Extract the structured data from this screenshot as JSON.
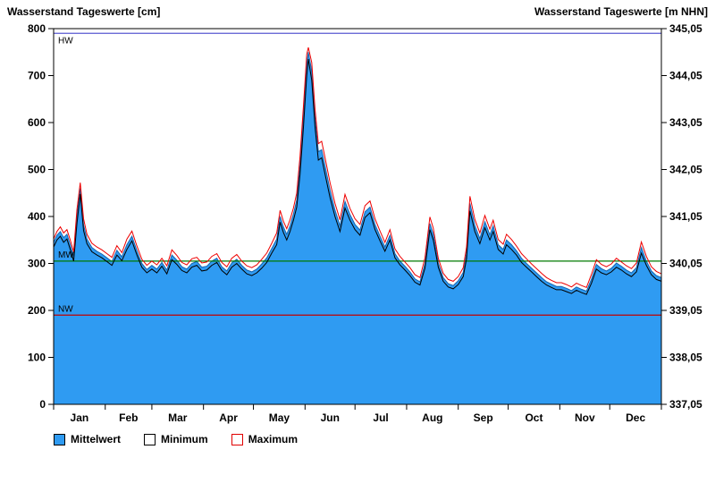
{
  "header": {
    "title_left": "Wasserstand Tageswerte [cm]",
    "title_right": "Wasserstand Tageswerte [m NHN]"
  },
  "legend": {
    "items": [
      {
        "label": "Mittelwert"
      },
      {
        "label": "Minimum"
      },
      {
        "label": "Maximum"
      }
    ]
  },
  "colors": {
    "fill": "#2f9bf2",
    "mean_stroke": "#1565b0",
    "min_line": "#000000",
    "max_line": "#ee0000",
    "hw_line": "#5a5ad2",
    "mw_line": "#007a00",
    "nw_line": "#c00000",
    "frame": "#000000"
  },
  "chart_data": {
    "type": "area",
    "title": "Wasserstand Tageswerte",
    "y_left": {
      "label": "Wasserstand Tageswerte [cm]",
      "min": 0,
      "max": 800,
      "tick_step": 100
    },
    "y_right": {
      "label": "Wasserstand Tageswerte [m NHN]",
      "ticks": [
        "337,05",
        "338,05",
        "339,05",
        "340,05",
        "341,05",
        "342,05",
        "343,05",
        "344,05",
        "345,05"
      ]
    },
    "x_axis": {
      "months": [
        "Jan",
        "Feb",
        "Mar",
        "Apr",
        "May",
        "Jun",
        "Jul",
        "Aug",
        "Sep",
        "Oct",
        "Nov",
        "Dec"
      ],
      "boundaries_days": [
        0,
        31,
        59,
        90,
        120,
        151,
        181,
        212,
        243,
        273,
        304,
        334,
        365
      ],
      "days_total": 365
    },
    "reference_lines": [
      {
        "name": "HW",
        "value_cm": 790,
        "color": "#5a5ad2",
        "label_position": "below"
      },
      {
        "name": "MW",
        "value_cm": 305,
        "color": "#007a00",
        "label_position": "above"
      },
      {
        "name": "NW",
        "value_cm": 190,
        "color": "#c00000",
        "label_position": "above"
      }
    ],
    "series": [
      {
        "name": "Mittelwert",
        "style": "area-fill-blue",
        "tuple_index": 2
      },
      {
        "name": "Minimum",
        "style": "black-line",
        "tuple_index": 1
      },
      {
        "name": "Maximum",
        "style": "red-line",
        "tuple_index": 3
      }
    ],
    "points_format": "[day_of_year, minimum_cm, mittelwert_cm, maximum_cm]",
    "points": [
      [
        0,
        335,
        345,
        352
      ],
      [
        2,
        350,
        360,
        368
      ],
      [
        4,
        358,
        368,
        378
      ],
      [
        6,
        345,
        355,
        365
      ],
      [
        8,
        352,
        362,
        372
      ],
      [
        10,
        330,
        340,
        350
      ],
      [
        12,
        305,
        315,
        325
      ],
      [
        14,
        385,
        400,
        415
      ],
      [
        16,
        448,
        460,
        472
      ],
      [
        18,
        370,
        382,
        395
      ],
      [
        20,
        342,
        352,
        362
      ],
      [
        23,
        325,
        334,
        343
      ],
      [
        26,
        318,
        326,
        335
      ],
      [
        29,
        312,
        320,
        329
      ],
      [
        32,
        304,
        312,
        321
      ],
      [
        35,
        296,
        304,
        313
      ],
      [
        38,
        318,
        328,
        338
      ],
      [
        41,
        306,
        314,
        323
      ],
      [
        44,
        330,
        340,
        352
      ],
      [
        47,
        348,
        358,
        369
      ],
      [
        50,
        318,
        327,
        337
      ],
      [
        53,
        292,
        300,
        309
      ],
      [
        56,
        280,
        287,
        296
      ],
      [
        59,
        288,
        296,
        305
      ],
      [
        62,
        280,
        288,
        297
      ],
      [
        65,
        294,
        302,
        311
      ],
      [
        68,
        278,
        286,
        295
      ],
      [
        71,
        308,
        318,
        329
      ],
      [
        74,
        298,
        307,
        317
      ],
      [
        77,
        285,
        293,
        302
      ],
      [
        80,
        280,
        288,
        297
      ],
      [
        83,
        292,
        300,
        310
      ],
      [
        86,
        296,
        304,
        313
      ],
      [
        89,
        284,
        292,
        301
      ],
      [
        92,
        286,
        294,
        303
      ],
      [
        95,
        296,
        305,
        315
      ],
      [
        98,
        302,
        311,
        321
      ],
      [
        101,
        285,
        293,
        302
      ],
      [
        104,
        276,
        284,
        293
      ],
      [
        107,
        292,
        301,
        311
      ],
      [
        110,
        300,
        309,
        319
      ],
      [
        113,
        288,
        296,
        305
      ],
      [
        116,
        278,
        286,
        295
      ],
      [
        119,
        274,
        282,
        291
      ],
      [
        122,
        280,
        288,
        297
      ],
      [
        125,
        290,
        299,
        309
      ],
      [
        128,
        302,
        312,
        322
      ],
      [
        131,
        322,
        332,
        343
      ],
      [
        134,
        340,
        352,
        365
      ],
      [
        136,
        388,
        400,
        413
      ],
      [
        138,
        366,
        378,
        390
      ],
      [
        140,
        350,
        362,
        374
      ],
      [
        142,
        368,
        380,
        393
      ],
      [
        144,
        392,
        405,
        418
      ],
      [
        146,
        420,
        435,
        450
      ],
      [
        148,
        490,
        510,
        528
      ],
      [
        150,
        590,
        615,
        635
      ],
      [
        152,
        700,
        725,
        745
      ],
      [
        153,
        735,
        750,
        760
      ],
      [
        155,
        690,
        710,
        728
      ],
      [
        157,
        590,
        610,
        628
      ],
      [
        159,
        520,
        538,
        555
      ],
      [
        161,
        525,
        542,
        560
      ],
      [
        163,
        490,
        508,
        525
      ],
      [
        166,
        440,
        456,
        472
      ],
      [
        169,
        400,
        414,
        428
      ],
      [
        172,
        368,
        380,
        393
      ],
      [
        175,
        418,
        432,
        447
      ],
      [
        178,
        392,
        404,
        417
      ],
      [
        181,
        372,
        383,
        395
      ],
      [
        184,
        360,
        371,
        383
      ],
      [
        187,
        398,
        410,
        423
      ],
      [
        190,
        408,
        420,
        433
      ],
      [
        193,
        372,
        383,
        395
      ],
      [
        196,
        348,
        358,
        369
      ],
      [
        199,
        326,
        335,
        345
      ],
      [
        202,
        350,
        360,
        372
      ],
      [
        205,
        312,
        321,
        331
      ],
      [
        208,
        297,
        305,
        315
      ],
      [
        211,
        286,
        294,
        303
      ],
      [
        214,
        274,
        282,
        291
      ],
      [
        217,
        260,
        267,
        276
      ],
      [
        220,
        254,
        261,
        270
      ],
      [
        223,
        290,
        300,
        312
      ],
      [
        226,
        372,
        385,
        399
      ],
      [
        228,
        350,
        362,
        375
      ],
      [
        231,
        292,
        301,
        311
      ],
      [
        234,
        262,
        270,
        279
      ],
      [
        237,
        250,
        257,
        266
      ],
      [
        240,
        246,
        253,
        262
      ],
      [
        243,
        255,
        263,
        272
      ],
      [
        246,
        272,
        281,
        291
      ],
      [
        248,
        310,
        322,
        335
      ],
      [
        250,
        412,
        428,
        443
      ],
      [
        253,
        368,
        381,
        394
      ],
      [
        256,
        342,
        353,
        365
      ],
      [
        259,
        376,
        389,
        402
      ],
      [
        262,
        350,
        361,
        373
      ],
      [
        264,
        368,
        380,
        392
      ],
      [
        267,
        330,
        340,
        351
      ],
      [
        270,
        320,
        330,
        341
      ],
      [
        272,
        340,
        350,
        362
      ],
      [
        275,
        330,
        340,
        351
      ],
      [
        278,
        318,
        327,
        337
      ],
      [
        281,
        302,
        311,
        321
      ],
      [
        284,
        292,
        300,
        310
      ],
      [
        287,
        282,
        290,
        299
      ],
      [
        290,
        272,
        280,
        289
      ],
      [
        293,
        262,
        270,
        279
      ],
      [
        296,
        254,
        261,
        270
      ],
      [
        299,
        249,
        256,
        264
      ],
      [
        302,
        244,
        251,
        259
      ],
      [
        305,
        244,
        251,
        259
      ],
      [
        308,
        240,
        247,
        255
      ],
      [
        311,
        236,
        242,
        250
      ],
      [
        314,
        243,
        250,
        258
      ],
      [
        317,
        238,
        245,
        253
      ],
      [
        320,
        234,
        241,
        249
      ],
      [
        323,
        258,
        267,
        277
      ],
      [
        326,
        288,
        298,
        308
      ],
      [
        329,
        280,
        289,
        298
      ],
      [
        332,
        276,
        284,
        293
      ],
      [
        335,
        282,
        290,
        299
      ],
      [
        338,
        292,
        301,
        311
      ],
      [
        341,
        286,
        294,
        303
      ],
      [
        344,
        278,
        286,
        295
      ],
      [
        347,
        272,
        280,
        289
      ],
      [
        350,
        282,
        291,
        301
      ],
      [
        353,
        322,
        334,
        346
      ],
      [
        356,
        296,
        305,
        315
      ],
      [
        359,
        276,
        284,
        293
      ],
      [
        362,
        266,
        274,
        283
      ],
      [
        365,
        262,
        270,
        278
      ]
    ]
  }
}
